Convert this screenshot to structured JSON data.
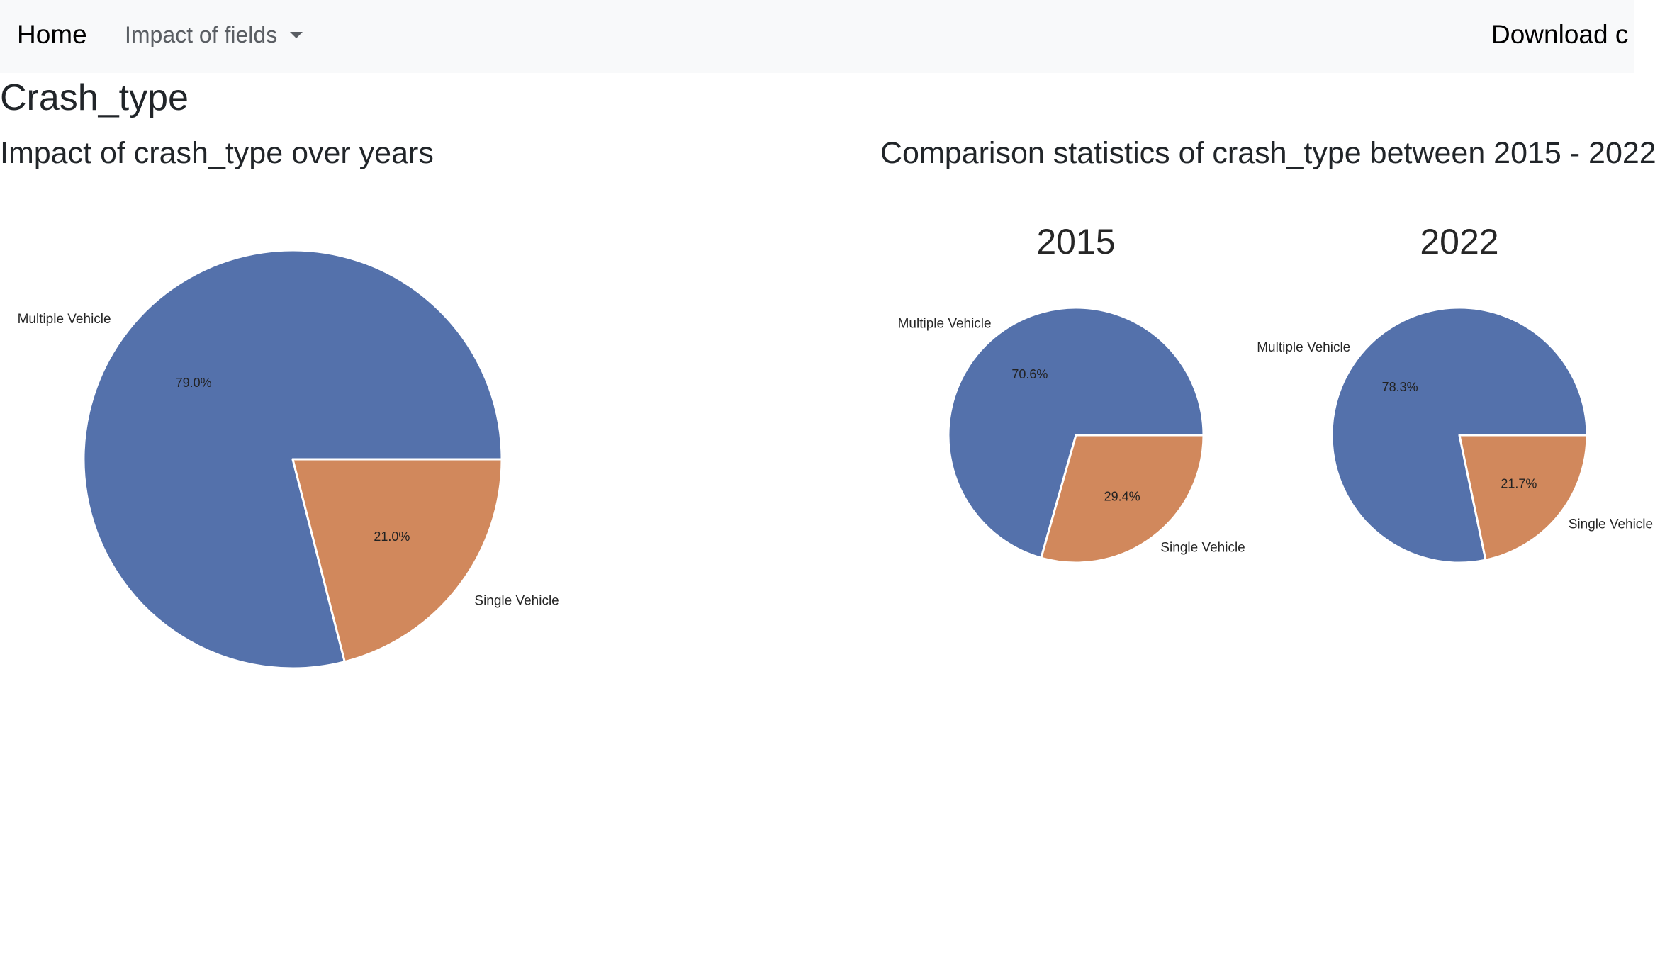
{
  "navbar": {
    "home_label": "Home",
    "dropdown_label": "Impact of fields",
    "download_label": "Download c"
  },
  "page": {
    "title": "Crash_type",
    "left_section_title": "Impact of crash_type over years",
    "right_section_title": "Comparison statistics of crash_type between 2015 - 2022"
  },
  "colors": {
    "navbar_bg": "#f8f9fa",
    "multiple_vehicle": "#5471ab",
    "single_vehicle": "#d1885c"
  },
  "chart_data": [
    {
      "type": "pie",
      "title": "",
      "labels": [
        "Multiple Vehicle",
        "Single Vehicle"
      ],
      "values": [
        79.0,
        21.0
      ],
      "value_labels": [
        "79.0%",
        "21.0%"
      ],
      "colors": [
        "#5471ab",
        "#d1885c"
      ]
    },
    {
      "type": "pie",
      "title": "2015",
      "labels": [
        "Multiple Vehicle",
        "Single Vehicle"
      ],
      "values": [
        70.6,
        29.4
      ],
      "value_labels": [
        "70.6%",
        "29.4%"
      ],
      "colors": [
        "#5471ab",
        "#d1885c"
      ]
    },
    {
      "type": "pie",
      "title": "2022",
      "labels": [
        "Multiple Vehicle",
        "Single Vehicle"
      ],
      "values": [
        78.3,
        21.7
      ],
      "value_labels": [
        "78.3%",
        "21.7%"
      ],
      "colors": [
        "#5471ab",
        "#d1885c"
      ]
    }
  ]
}
